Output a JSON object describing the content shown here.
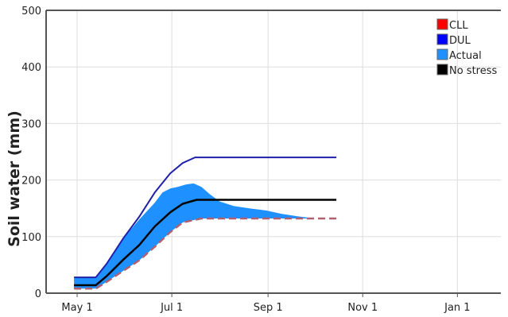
{
  "chart_data": {
    "type": "area",
    "title": "",
    "xlabel": "",
    "ylabel": "Soil water (mm)",
    "ylim": [
      0,
      500
    ],
    "xlim": [
      "2021-04-11",
      "2022-01-29"
    ],
    "x_ticks": [
      {
        "date": "2021-05-01",
        "label": "May 1"
      },
      {
        "date": "2021-07-01",
        "label": "Jul 1"
      },
      {
        "date": "2021-09-01",
        "label": "Sep 1"
      },
      {
        "date": "2021-11-01",
        "label": "Nov 1"
      },
      {
        "date": "2022-01-01",
        "label": "Jan 1"
      }
    ],
    "y_ticks": [
      0,
      100,
      200,
      300,
      400,
      500
    ],
    "grid": true,
    "legend_position": "top-right",
    "legend": [
      {
        "name": "CLL",
        "color": "#ff0000"
      },
      {
        "name": "DUL",
        "color": "#0000ff"
      },
      {
        "name": "Actual",
        "color": "#1e90ff"
      },
      {
        "name": "No stress",
        "color": "#000000"
      }
    ],
    "series": [
      {
        "name": "CLL",
        "style": "dashed",
        "color": "#b06070",
        "points": [
          [
            "2021-04-29",
            8
          ],
          [
            "2021-05-13",
            8
          ],
          [
            "2021-05-20",
            20
          ],
          [
            "2021-05-31",
            40
          ],
          [
            "2021-06-10",
            58
          ],
          [
            "2021-06-20",
            82
          ],
          [
            "2021-06-30",
            108
          ],
          [
            "2021-07-08",
            125
          ],
          [
            "2021-07-20",
            132
          ],
          [
            "2021-10-15",
            132
          ]
        ]
      },
      {
        "name": "DUL",
        "style": "solid",
        "color": "#2020aa",
        "points": [
          [
            "2021-04-29",
            28
          ],
          [
            "2021-05-13",
            28
          ],
          [
            "2021-05-20",
            52
          ],
          [
            "2021-05-31",
            98
          ],
          [
            "2021-06-10",
            135
          ],
          [
            "2021-06-20",
            178
          ],
          [
            "2021-06-30",
            212
          ],
          [
            "2021-07-08",
            230
          ],
          [
            "2021-07-16",
            240
          ],
          [
            "2021-10-15",
            240
          ]
        ]
      },
      {
        "name": "No stress",
        "style": "solid",
        "color": "#000000",
        "points": [
          [
            "2021-04-29",
            14
          ],
          [
            "2021-05-13",
            14
          ],
          [
            "2021-05-20",
            30
          ],
          [
            "2021-05-31",
            60
          ],
          [
            "2021-06-10",
            85
          ],
          [
            "2021-06-20",
            118
          ],
          [
            "2021-06-30",
            143
          ],
          [
            "2021-07-08",
            158
          ],
          [
            "2021-07-17",
            165
          ],
          [
            "2021-10-15",
            165
          ]
        ]
      },
      {
        "name": "Actual",
        "style": "band",
        "color": "#1e90ff",
        "upper": [
          [
            "2021-04-29",
            28
          ],
          [
            "2021-05-13",
            28
          ],
          [
            "2021-05-20",
            52
          ],
          [
            "2021-05-31",
            98
          ],
          [
            "2021-06-10",
            130
          ],
          [
            "2021-06-20",
            160
          ],
          [
            "2021-06-25",
            178
          ],
          [
            "2021-06-30",
            185
          ],
          [
            "2021-07-05",
            188
          ],
          [
            "2021-07-10",
            192
          ],
          [
            "2021-07-15",
            194
          ],
          [
            "2021-07-20",
            188
          ],
          [
            "2021-07-25",
            176
          ],
          [
            "2021-08-01",
            162
          ],
          [
            "2021-08-10",
            154
          ],
          [
            "2021-08-20",
            150
          ],
          [
            "2021-08-31",
            146
          ],
          [
            "2021-09-10",
            140
          ],
          [
            "2021-09-20",
            136
          ],
          [
            "2021-10-01",
            132
          ],
          [
            "2021-10-15",
            132
          ]
        ],
        "lower": [
          [
            "2021-04-29",
            8
          ],
          [
            "2021-05-13",
            8
          ],
          [
            "2021-05-20",
            20
          ],
          [
            "2021-05-31",
            40
          ],
          [
            "2021-06-10",
            58
          ],
          [
            "2021-06-20",
            82
          ],
          [
            "2021-06-30",
            108
          ],
          [
            "2021-07-08",
            125
          ],
          [
            "2021-07-20",
            132
          ],
          [
            "2021-10-15",
            132
          ]
        ]
      }
    ]
  }
}
